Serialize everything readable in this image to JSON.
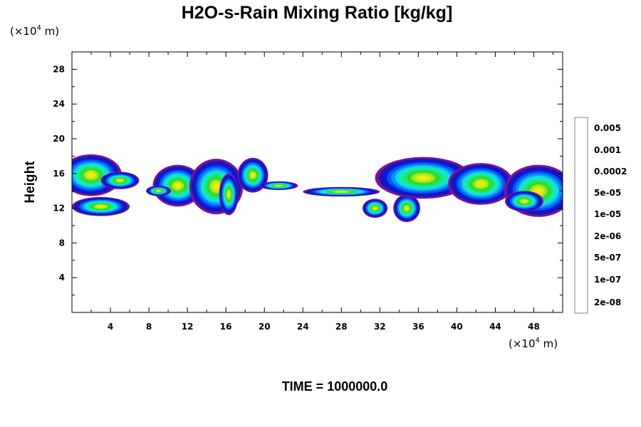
{
  "chart_data": {
    "type": "heatmap",
    "title": "H2O-s-Rain Mixing Ratio [kg/kg]",
    "ylabel": "Height",
    "x_unit_prefix": "(×10",
    "x_unit_exp": "4",
    "x_unit_suffix": " m)",
    "y_unit_prefix": "(×10",
    "y_unit_exp": "4",
    "y_unit_suffix": " m)",
    "xlim": [
      0,
      51
    ],
    "ylim": [
      0,
      30
    ],
    "x_ticks": [
      "4",
      "8",
      "12",
      "16",
      "20",
      "24",
      "28",
      "32",
      "36",
      "40",
      "44",
      "48"
    ],
    "y_ticks": [
      "4",
      "8",
      "12",
      "16",
      "20",
      "24",
      "28"
    ],
    "grid": false,
    "legend": "right",
    "time_label": "TIME = 1000000.0",
    "colorbar": {
      "labels": [
        "0.005",
        "0.001",
        "0.0002",
        "5e-05",
        "1e-05",
        "2e-06",
        "5e-07",
        "1e-07",
        "2e-08"
      ],
      "colors": [
        "#7a0fa8",
        "#1a1a9e",
        "#0019f0",
        "#0a55f0",
        "#0c94f0",
        "#10d8ef",
        "#12ecb0",
        "#1ae860",
        "#36d62e",
        "#9ae81a",
        "#d6ee12",
        "#f7ea12",
        "#f9b40e",
        "#f7700d",
        "#f22a0a",
        "#f5362f",
        "#f99ea0"
      ]
    },
    "clouds": [
      {
        "cx": 2.0,
        "cy": 15.8,
        "rx": 3.2,
        "ry": 2.4
      },
      {
        "cx": 3.0,
        "cy": 12.2,
        "rx": 3.0,
        "ry": 1.1
      },
      {
        "cx": 5.0,
        "cy": 15.2,
        "rx": 2.0,
        "ry": 1.0
      },
      {
        "cx": 11.0,
        "cy": 14.6,
        "rx": 2.6,
        "ry": 2.4
      },
      {
        "cx": 15.0,
        "cy": 14.5,
        "rx": 2.8,
        "ry": 3.2
      },
      {
        "cx": 16.3,
        "cy": 13.6,
        "rx": 1.0,
        "ry": 2.4
      },
      {
        "cx": 18.8,
        "cy": 15.8,
        "rx": 1.6,
        "ry": 2.0
      },
      {
        "cx": 9.0,
        "cy": 14.0,
        "rx": 1.3,
        "ry": 0.6
      },
      {
        "cx": 21.5,
        "cy": 14.6,
        "rx": 2.0,
        "ry": 0.5
      },
      {
        "cx": 28.0,
        "cy": 13.9,
        "rx": 4.0,
        "ry": 0.55
      },
      {
        "cx": 31.5,
        "cy": 12.0,
        "rx": 1.3,
        "ry": 1.1
      },
      {
        "cx": 34.8,
        "cy": 12.0,
        "rx": 1.4,
        "ry": 1.6
      },
      {
        "cx": 36.5,
        "cy": 15.5,
        "rx": 5.0,
        "ry": 2.4
      },
      {
        "cx": 42.5,
        "cy": 14.8,
        "rx": 3.4,
        "ry": 2.4
      },
      {
        "cx": 48.5,
        "cy": 14.0,
        "rx": 3.6,
        "ry": 3.0
      },
      {
        "cx": 47.0,
        "cy": 12.8,
        "rx": 2.0,
        "ry": 1.2
      }
    ]
  }
}
